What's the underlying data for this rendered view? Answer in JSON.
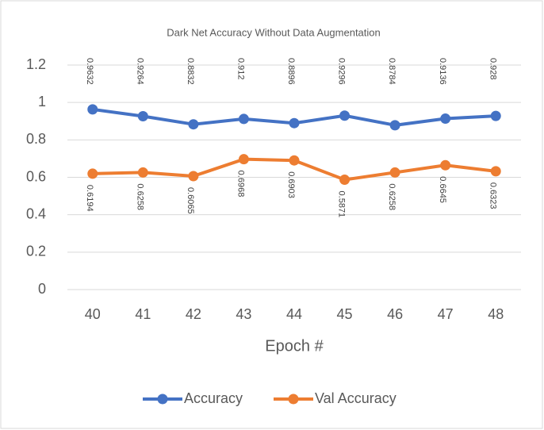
{
  "chart_data": {
    "type": "line",
    "title": "Dark Net Accuracy Without Data Augmentation",
    "x_label": "Epoch #",
    "categories": [
      "40",
      "41",
      "42",
      "43",
      "44",
      "45",
      "46",
      "47",
      "48"
    ],
    "series": [
      {
        "name": "Accuracy",
        "color": "#4472c4",
        "values": [
          0.9632,
          0.9264,
          0.8832,
          0.912,
          0.8896,
          0.9296,
          0.8784,
          0.9136,
          0.928
        ]
      },
      {
        "name": "Val Accuracy",
        "color": "#ed7d31",
        "values": [
          0.6194,
          0.6258,
          0.6065,
          0.6968,
          0.6903,
          0.5871,
          0.6258,
          0.6645,
          0.6323
        ]
      }
    ],
    "ylim": [
      0,
      1.2
    ],
    "yticks": [
      0,
      0.2,
      0.4,
      0.6,
      0.8,
      1,
      1.2
    ],
    "grid": true,
    "legend": "bottom"
  }
}
